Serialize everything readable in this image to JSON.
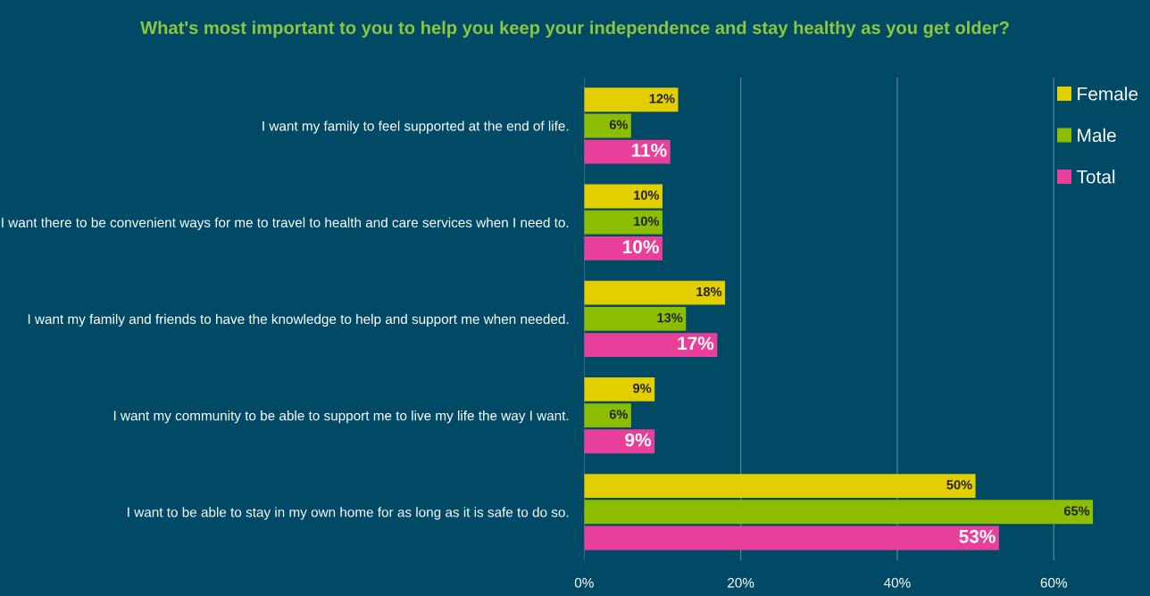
{
  "chart_data": {
    "type": "bar",
    "orientation": "horizontal",
    "title": "What's most important to you to help you keep your independence and stay healthy as you get older?",
    "categories": [
      "I want my family to feel supported at the end of life.",
      "I want there to be convenient ways for me to travel to health and care services when I need to.",
      "I want my family and friends to have the knowledge to help and support me when needed.",
      "I want my community to be able to support me to live my life the way I want.",
      "I want to be able to stay in my own home for as long as it is safe to do so."
    ],
    "series": [
      {
        "name": "Female",
        "color": "#e3cf00",
        "values": [
          12,
          10,
          18,
          9,
          50
        ],
        "value_labels": [
          "12%",
          "10%",
          "18%",
          "9%",
          "50%"
        ]
      },
      {
        "name": "Male",
        "color": "#8cbd00",
        "values": [
          6,
          10,
          13,
          6,
          65
        ],
        "value_labels": [
          "6%",
          "10%",
          "13%",
          "6%",
          "65%"
        ]
      },
      {
        "name": "Total",
        "color": "#e8409a",
        "values": [
          11,
          10,
          17,
          9,
          53
        ],
        "value_labels": [
          "11%",
          "10%",
          "17%",
          "9%",
          "53%"
        ]
      }
    ],
    "xlim": [
      0,
      72
    ],
    "xticks": [
      {
        "value": 0,
        "label": "0%"
      },
      {
        "value": 20,
        "label": "20%"
      },
      {
        "value": 40,
        "label": "40%"
      },
      {
        "value": 60,
        "label": "60%"
      }
    ],
    "grid": "x",
    "legend": "top right"
  }
}
